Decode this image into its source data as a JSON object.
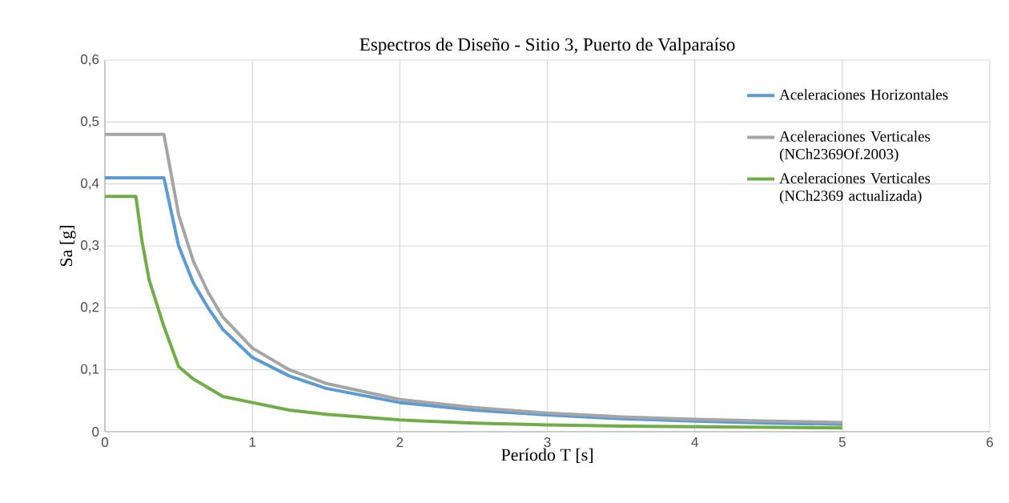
{
  "chart_data": {
    "type": "line",
    "title": "Espectros de Diseño - Sitio 3, Puerto de Valparaíso",
    "xlabel": "Período T [s]",
    "ylabel": "Sa [g]",
    "xlim": [
      0,
      6
    ],
    "xticks": [
      0,
      1,
      2,
      3,
      4,
      5,
      6
    ],
    "ylim": [
      0,
      0.6
    ],
    "yticks": [
      0,
      {
        "value": 0.1,
        "label": "0,1"
      },
      {
        "value": 0.2,
        "label": "0,2"
      },
      {
        "value": 0.3,
        "label": "0,3"
      },
      {
        "value": 0.4,
        "label": "0,4"
      },
      {
        "value": 0.5,
        "label": "0,5"
      },
      {
        "value": 0.6,
        "label": "0,6"
      }
    ],
    "grid": true,
    "legend": "top right",
    "marker": "none",
    "line_style": "solid",
    "series": [
      {
        "name": "Aceleraciones Horizontales",
        "color": "#5b9bd5",
        "x": [
          0,
          0.4,
          0.5,
          0.6,
          0.7,
          0.8,
          1.0,
          1.25,
          1.5,
          2,
          2.5,
          3,
          3.5,
          4,
          4.5,
          5
        ],
        "values": [
          0.41,
          0.41,
          0.3,
          0.24,
          0.2,
          0.165,
          0.12,
          0.09,
          0.07,
          0.047,
          0.035,
          0.027,
          0.021,
          0.017,
          0.014,
          0.012
        ]
      },
      {
        "name": "Aceleraciones Verticales (NCh2369Of.2003)",
        "color": "#a5a5a5",
        "x": [
          0,
          0.4,
          0.5,
          0.6,
          0.7,
          0.8,
          1.0,
          1.25,
          1.5,
          2,
          2.5,
          3,
          3.5,
          4,
          4.5,
          5
        ],
        "values": [
          0.48,
          0.48,
          0.35,
          0.275,
          0.225,
          0.185,
          0.135,
          0.1,
          0.078,
          0.052,
          0.039,
          0.03,
          0.024,
          0.02,
          0.017,
          0.015
        ]
      },
      {
        "name": "Aceleraciones Verticales (NCh2369 actualizada)",
        "color": "#70ad47",
        "x": [
          0,
          0.21,
          0.25,
          0.3,
          0.4,
          0.5,
          0.6,
          0.8,
          1,
          1.25,
          1.5,
          2,
          2.5,
          3,
          3.5,
          4,
          4.5,
          5
        ],
        "values": [
          0.38,
          0.38,
          0.31,
          0.245,
          0.17,
          0.105,
          0.085,
          0.057,
          0.047,
          0.035,
          0.028,
          0.019,
          0.014,
          0.011,
          0.009,
          0.008,
          0.007,
          0.006
        ]
      }
    ]
  }
}
